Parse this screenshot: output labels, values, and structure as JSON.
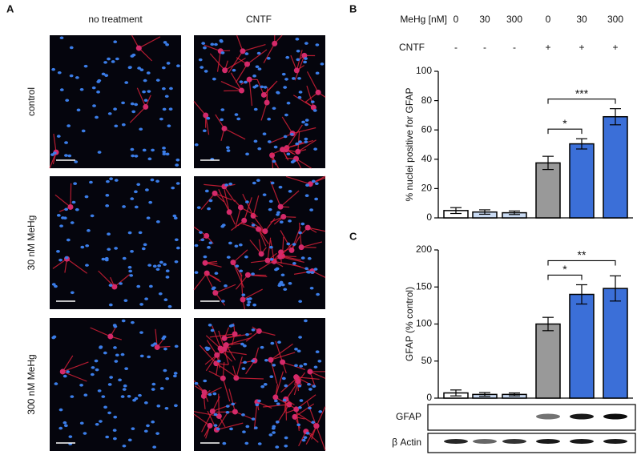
{
  "panel_labels": [
    "A",
    "B",
    "C"
  ],
  "micrographs": {
    "column_labels": [
      "no treatment",
      "CNTF"
    ],
    "row_labels": [
      "control",
      "30 nM MeHg",
      "300 nM MeHg"
    ]
  },
  "treatment_table": {
    "row_labels": [
      "MeHg [nM]",
      "CNTF"
    ],
    "rows": [
      [
        0,
        30,
        300,
        0,
        30,
        300
      ],
      [
        "-",
        "-",
        "-",
        "+",
        "+",
        "+"
      ]
    ]
  },
  "chart_data": [
    {
      "type": "bar",
      "y_label": "% nuclei positive for GFAP",
      "categories": [
        null,
        null,
        null,
        null,
        null,
        null
      ],
      "values": [
        5,
        4,
        3.5,
        37.5,
        50.5,
        69
      ],
      "errors": [
        2,
        1.5,
        1.2,
        4.5,
        3.5,
        5.5
      ],
      "colors": [
        "#ffffff",
        "#c9daf2",
        "#c9daf2",
        "#999999",
        "#3b6fd8",
        "#3b6fd8"
      ],
      "ylim": [
        0,
        100
      ],
      "yticks": [
        0,
        20,
        40,
        60,
        80,
        100
      ],
      "annotations": [
        {
          "text": "*",
          "between": [
            3,
            4
          ]
        },
        {
          "text": "***",
          "between": [
            3,
            5
          ]
        }
      ]
    },
    {
      "type": "bar",
      "y_label": "GFAP (% control)",
      "categories": [
        null,
        null,
        null,
        null,
        null,
        null
      ],
      "values": [
        7,
        5,
        5,
        100,
        140,
        148
      ],
      "errors": [
        4,
        2.5,
        2,
        9,
        13,
        17
      ],
      "colors": [
        "#ffffff",
        "#c9daf2",
        "#c9daf2",
        "#999999",
        "#3b6fd8",
        "#3b6fd8"
      ],
      "ylim": [
        0,
        200
      ],
      "yticks": [
        0,
        50,
        100,
        150,
        200
      ],
      "annotations": [
        {
          "text": "*",
          "between": [
            3,
            4
          ]
        },
        {
          "text": "**",
          "between": [
            3,
            5
          ]
        }
      ]
    }
  ],
  "blots": {
    "labels": [
      "GFAP",
      "β Actin"
    ]
  }
}
